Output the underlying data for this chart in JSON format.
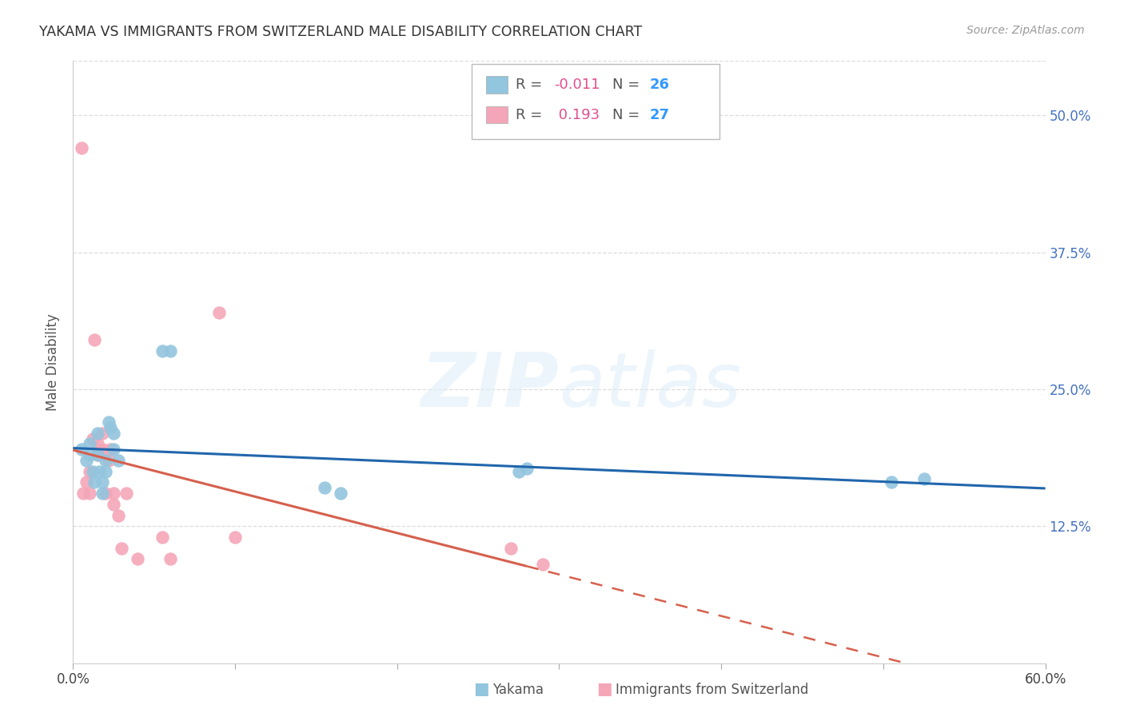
{
  "title": "YAKAMA VS IMMIGRANTS FROM SWITZERLAND MALE DISABILITY CORRELATION CHART",
  "source": "Source: ZipAtlas.com",
  "ylabel": "Male Disability",
  "xlim": [
    0.0,
    0.6
  ],
  "ylim": [
    0.0,
    0.55
  ],
  "xtick_values": [
    0.0,
    0.1,
    0.2,
    0.3,
    0.4,
    0.5,
    0.6
  ],
  "xtick_labels": [
    "0.0%",
    "",
    "",
    "",
    "",
    "",
    "60.0%"
  ],
  "ytick_values": [
    0.125,
    0.25,
    0.375,
    0.5
  ],
  "ytick_labels": [
    "12.5%",
    "25.0%",
    "37.5%",
    "50.0%"
  ],
  "blue_color": "#92c5de",
  "pink_color": "#f4a6b8",
  "blue_line_color": "#2166ac",
  "pink_line_color": "#d6604d",
  "watermark": "ZIPatlas",
  "yakama_x": [
    0.005,
    0.008,
    0.01,
    0.01,
    0.012,
    0.013,
    0.015,
    0.015,
    0.016,
    0.018,
    0.018,
    0.02,
    0.02,
    0.022,
    0.023,
    0.025,
    0.025,
    0.028,
    0.055,
    0.06,
    0.155,
    0.165,
    0.275,
    0.28,
    0.505,
    0.525
  ],
  "yakama_y": [
    0.195,
    0.185,
    0.2,
    0.19,
    0.175,
    0.165,
    0.21,
    0.19,
    0.175,
    0.165,
    0.155,
    0.185,
    0.175,
    0.22,
    0.215,
    0.21,
    0.195,
    0.185,
    0.285,
    0.285,
    0.16,
    0.155,
    0.175,
    0.178,
    0.165,
    0.168
  ],
  "swiss_x": [
    0.005,
    0.006,
    0.008,
    0.01,
    0.01,
    0.012,
    0.013,
    0.015,
    0.015,
    0.016,
    0.018,
    0.018,
    0.02,
    0.022,
    0.023,
    0.025,
    0.025,
    0.028,
    0.03,
    0.033,
    0.04,
    0.055,
    0.06,
    0.09,
    0.1,
    0.27,
    0.29
  ],
  "swiss_y": [
    0.47,
    0.155,
    0.165,
    0.175,
    0.155,
    0.205,
    0.295,
    0.2,
    0.19,
    0.195,
    0.195,
    0.21,
    0.155,
    0.185,
    0.195,
    0.155,
    0.145,
    0.135,
    0.105,
    0.155,
    0.095,
    0.115,
    0.095,
    0.32,
    0.115,
    0.105,
    0.09
  ]
}
